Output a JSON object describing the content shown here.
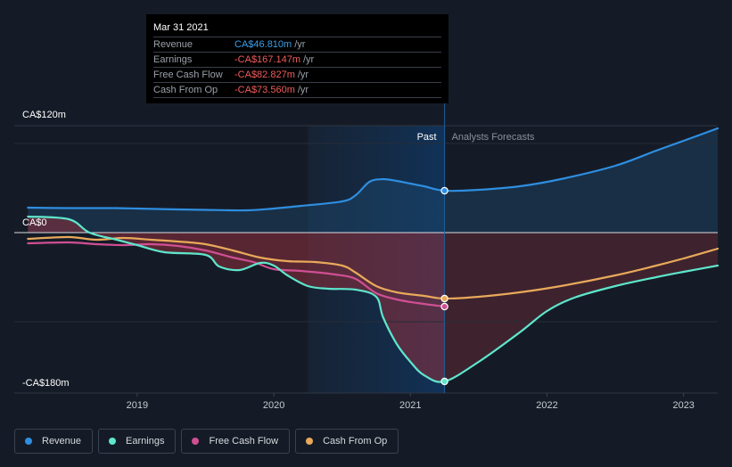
{
  "tooltip": {
    "date": "Mar 31 2021",
    "rows": [
      {
        "label": "Revenue",
        "value": "CA$46.810m",
        "unit": "/yr",
        "color": "#3b9fea"
      },
      {
        "label": "Earnings",
        "value": "-CA$167.147m",
        "unit": "/yr",
        "color": "#f25c5c"
      },
      {
        "label": "Free Cash Flow",
        "value": "-CA$82.827m",
        "unit": "/yr",
        "color": "#f25c5c"
      },
      {
        "label": "Cash From Op",
        "value": "-CA$73.560m",
        "unit": "/yr",
        "color": "#f25c5c"
      }
    ]
  },
  "legend": [
    {
      "label": "Revenue",
      "color": "#2f8ee0"
    },
    {
      "label": "Earnings",
      "color": "#5ee6cc"
    },
    {
      "label": "Free Cash Flow",
      "color": "#cf4f93"
    },
    {
      "label": "Cash From Op",
      "color": "#e8a95a"
    }
  ],
  "chart_data": {
    "type": "line",
    "title": "",
    "xlabel": "",
    "ylabel": "",
    "xlim": [
      2018.1,
      2023.25
    ],
    "ylim": [
      -180,
      120
    ],
    "y_tick_labels": [
      {
        "value": 120,
        "label": "CA$120m"
      },
      {
        "value": 0,
        "label": "CA$0"
      },
      {
        "value": -180,
        "label": "-CA$180m"
      }
    ],
    "x_ticks": [
      {
        "value": 2019,
        "label": "2019"
      },
      {
        "value": 2020,
        "label": "2020"
      },
      {
        "value": 2021,
        "label": "2021"
      },
      {
        "value": 2022,
        "label": "2022"
      },
      {
        "value": 2023,
        "label": "2023"
      }
    ],
    "past_label": "Past",
    "forecast_label": "Analysts Forecasts",
    "past_start": 2020.25,
    "divider_x": 2021.25,
    "series": [
      {
        "name": "Revenue",
        "color": "#2f8ee0",
        "marker": "2021.25",
        "points": [
          [
            2018.2,
            28
          ],
          [
            2018.5,
            27.5
          ],
          [
            2018.8,
            27.5
          ],
          [
            2019.0,
            27
          ],
          [
            2019.3,
            26
          ],
          [
            2019.5,
            25.5
          ],
          [
            2019.8,
            25
          ],
          [
            2020.0,
            27
          ],
          [
            2020.2,
            30
          ],
          [
            2020.5,
            35
          ],
          [
            2020.6,
            42
          ],
          [
            2020.7,
            57
          ],
          [
            2020.8,
            60
          ],
          [
            2020.9,
            58
          ],
          [
            2021.0,
            55
          ],
          [
            2021.1,
            52
          ],
          [
            2021.25,
            47
          ],
          [
            2021.5,
            48
          ],
          [
            2021.8,
            52
          ],
          [
            2022.1,
            60
          ],
          [
            2022.5,
            75
          ],
          [
            2022.8,
            92
          ],
          [
            2023.0,
            103
          ],
          [
            2023.25,
            117
          ]
        ]
      },
      {
        "name": "Earnings",
        "color": "#5ee6cc",
        "marker": "2021.25",
        "points": [
          [
            2018.2,
            18
          ],
          [
            2018.5,
            15
          ],
          [
            2018.65,
            0
          ],
          [
            2018.85,
            -8
          ],
          [
            2019.0,
            -14
          ],
          [
            2019.2,
            -22
          ],
          [
            2019.5,
            -25
          ],
          [
            2019.6,
            -38
          ],
          [
            2019.75,
            -42
          ],
          [
            2019.9,
            -34
          ],
          [
            2020.0,
            -37
          ],
          [
            2020.1,
            -48
          ],
          [
            2020.25,
            -60
          ],
          [
            2020.4,
            -63
          ],
          [
            2020.6,
            -64
          ],
          [
            2020.75,
            -72
          ],
          [
            2020.8,
            -95
          ],
          [
            2020.9,
            -125
          ],
          [
            2021.0,
            -145
          ],
          [
            2021.1,
            -160
          ],
          [
            2021.25,
            -167
          ],
          [
            2021.5,
            -145
          ],
          [
            2021.8,
            -112
          ],
          [
            2022.0,
            -88
          ],
          [
            2022.2,
            -73
          ],
          [
            2022.5,
            -60
          ],
          [
            2022.8,
            -50
          ],
          [
            2023.0,
            -44
          ],
          [
            2023.25,
            -37
          ]
        ]
      },
      {
        "name": "Free Cash Flow",
        "color": "#cf4f93",
        "points": [
          [
            2018.2,
            -12
          ],
          [
            2018.5,
            -11
          ],
          [
            2018.7,
            -13
          ],
          [
            2018.9,
            -14
          ],
          [
            2019.1,
            -13
          ],
          [
            2019.3,
            -15
          ],
          [
            2019.5,
            -20
          ],
          [
            2019.7,
            -28
          ],
          [
            2019.85,
            -33
          ],
          [
            2020.0,
            -41
          ],
          [
            2020.2,
            -43
          ],
          [
            2020.45,
            -47
          ],
          [
            2020.6,
            -52
          ],
          [
            2020.75,
            -68
          ],
          [
            2020.9,
            -75
          ],
          [
            2021.05,
            -79
          ],
          [
            2021.25,
            -83
          ]
        ]
      },
      {
        "name": "Cash From Op",
        "color": "#e8a95a",
        "marker": "2021.25",
        "points": [
          [
            2018.2,
            -7
          ],
          [
            2018.5,
            -5
          ],
          [
            2018.7,
            -8
          ],
          [
            2018.9,
            -6
          ],
          [
            2019.1,
            -8
          ],
          [
            2019.3,
            -10
          ],
          [
            2019.5,
            -13
          ],
          [
            2019.7,
            -20
          ],
          [
            2019.9,
            -28
          ],
          [
            2020.1,
            -32
          ],
          [
            2020.3,
            -33
          ],
          [
            2020.5,
            -37
          ],
          [
            2020.6,
            -45
          ],
          [
            2020.75,
            -60
          ],
          [
            2020.9,
            -67
          ],
          [
            2021.1,
            -71
          ],
          [
            2021.25,
            -74
          ],
          [
            2021.5,
            -72
          ],
          [
            2021.8,
            -67
          ],
          [
            2022.1,
            -60
          ],
          [
            2022.5,
            -48
          ],
          [
            2022.8,
            -37
          ],
          [
            2023.0,
            -29
          ],
          [
            2023.25,
            -18
          ]
        ]
      }
    ]
  }
}
